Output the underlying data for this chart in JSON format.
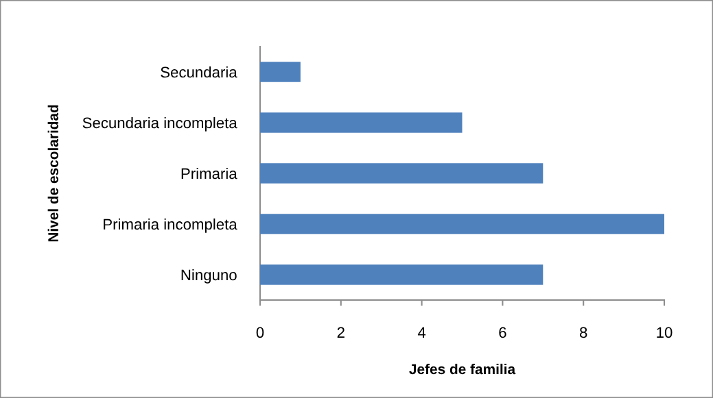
{
  "chart_data": {
    "type": "bar",
    "orientation": "horizontal",
    "categories": [
      "Secundaria",
      "Secundaria incompleta",
      "Primaria",
      "Primaria incompleta",
      "Ninguno"
    ],
    "values": [
      1,
      5,
      7,
      10,
      7
    ],
    "color": "#4f81bd",
    "xlim": [
      0,
      10
    ],
    "xticks": [
      0,
      2,
      4,
      6,
      8,
      10
    ],
    "xlabel": "Jefes de familia",
    "ylabel": "Nivel de escolaridad"
  }
}
